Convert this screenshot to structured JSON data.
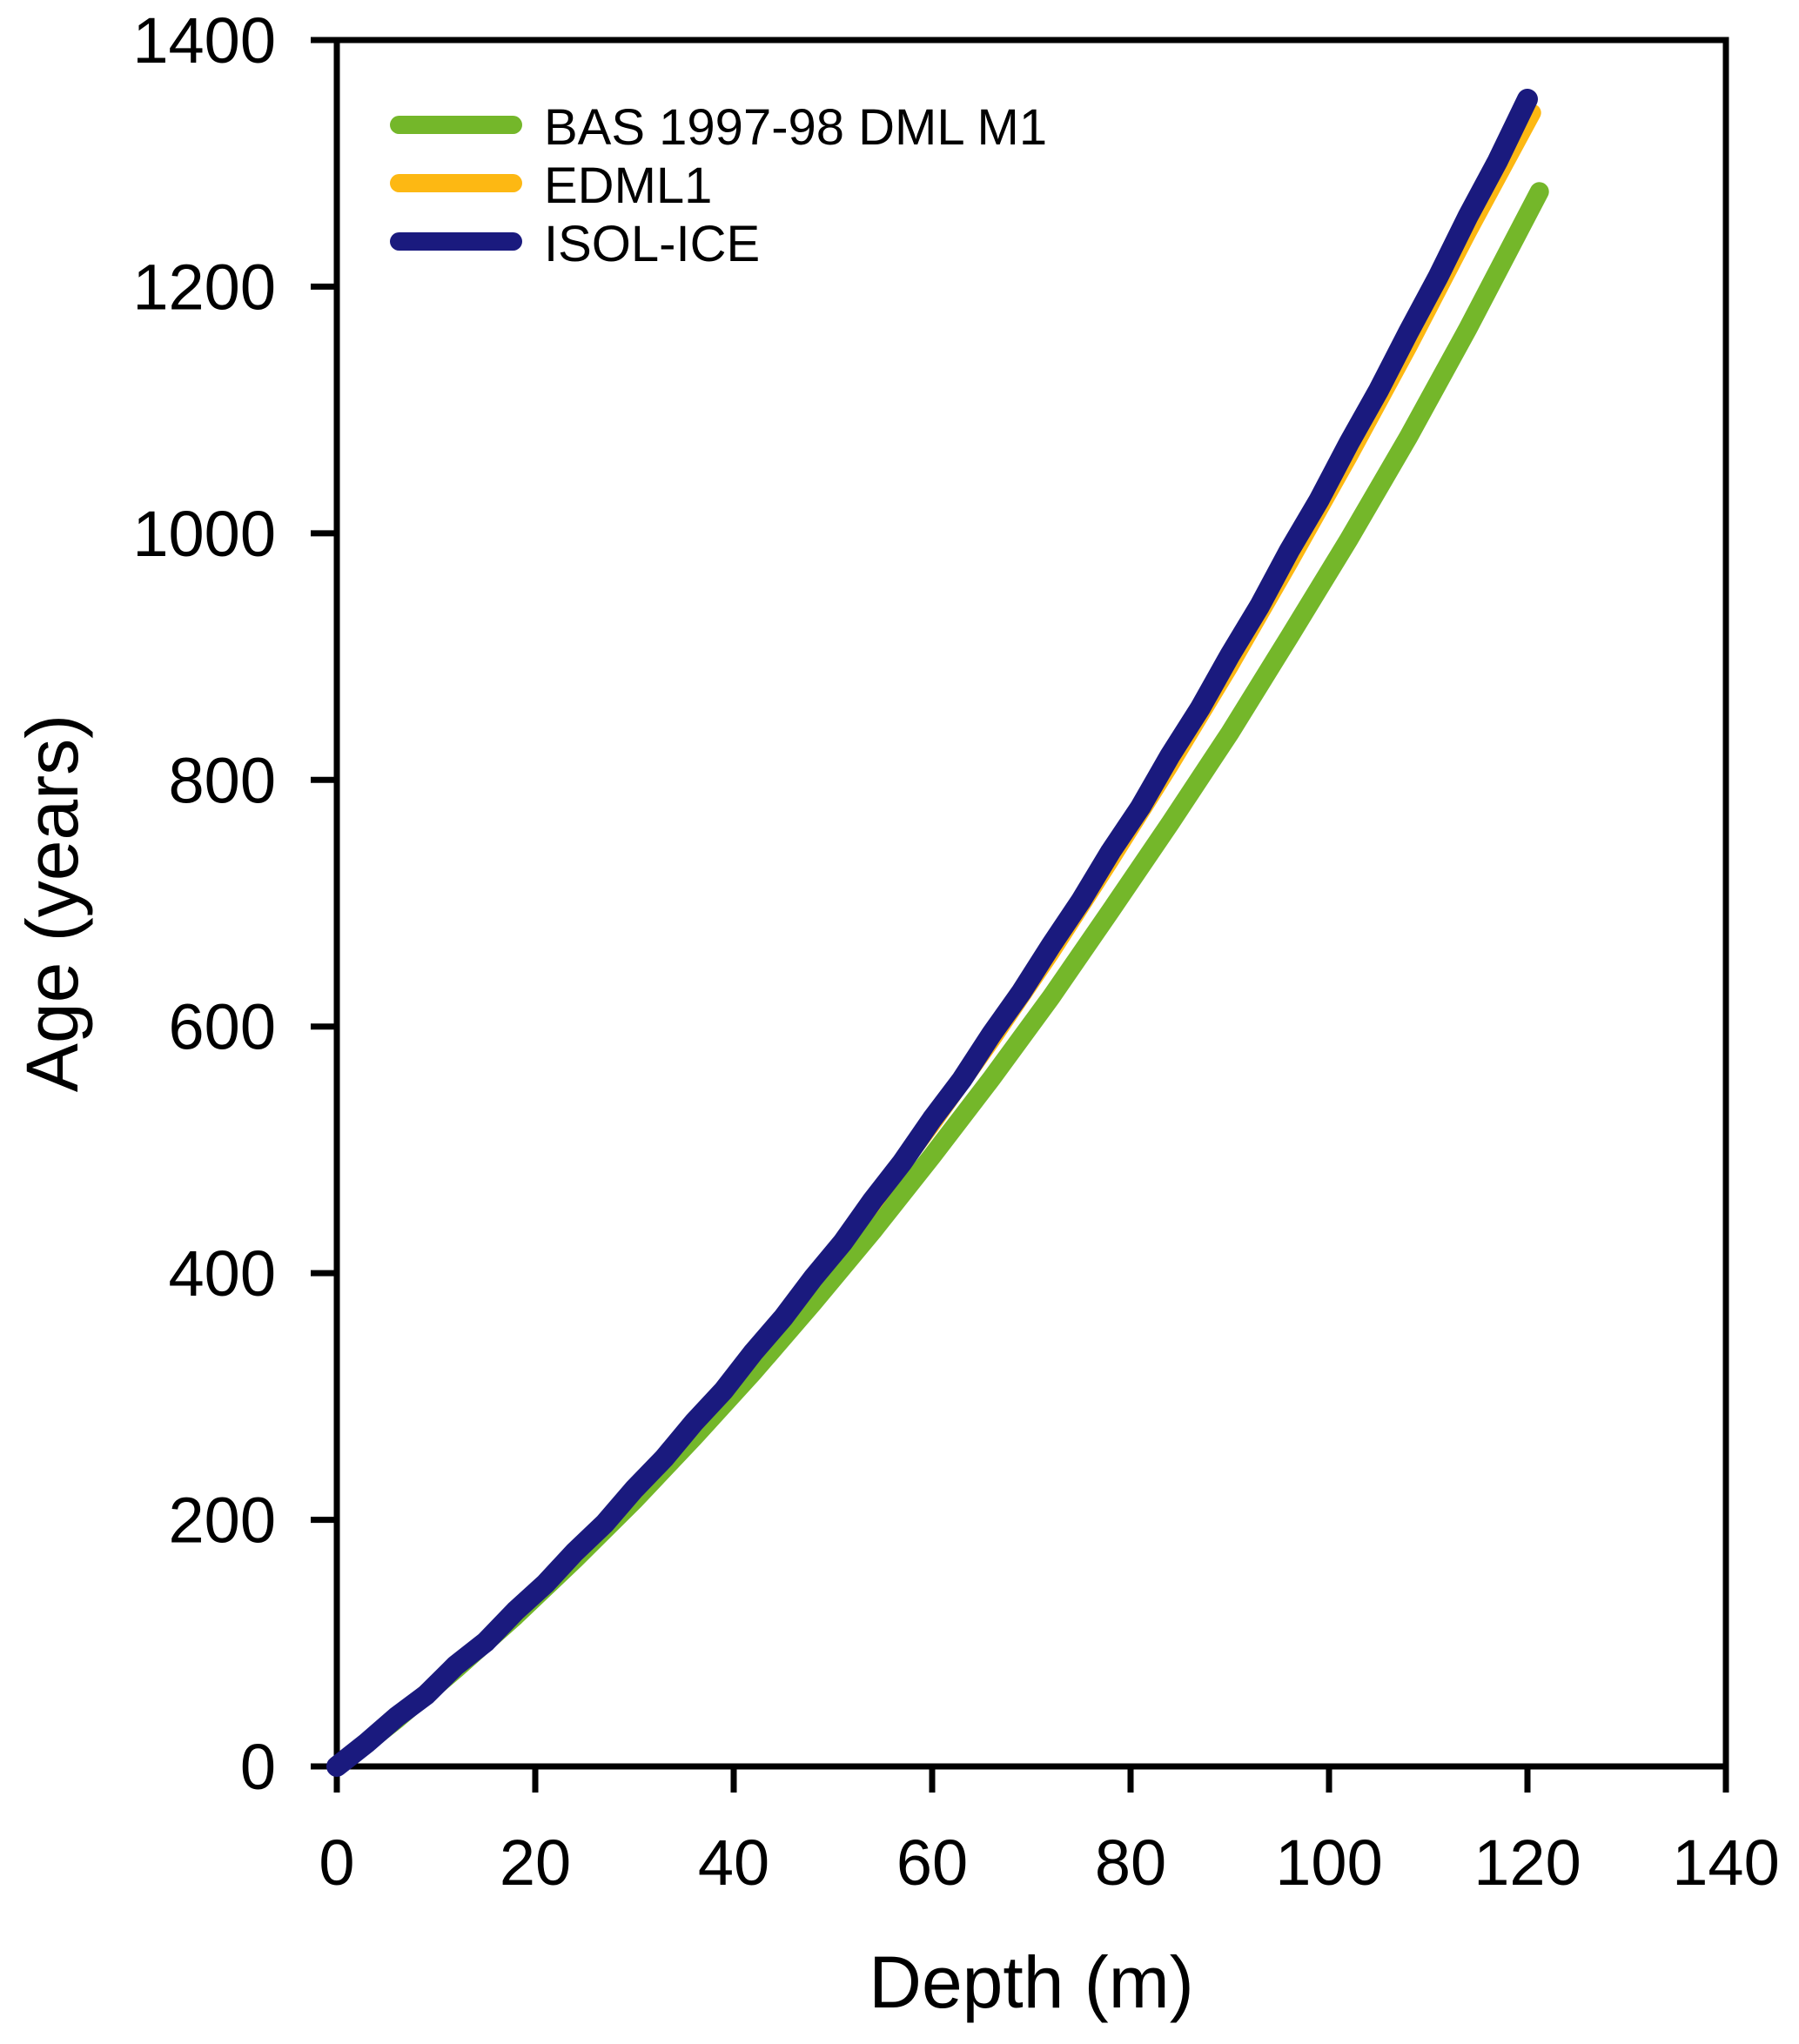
{
  "chart_data": {
    "type": "line",
    "title": "",
    "xlabel": "Depth (m)",
    "ylabel": "Age (years)",
    "xlim": [
      0,
      140
    ],
    "ylim": [
      0,
      1400
    ],
    "x_ticks": [
      0,
      20,
      40,
      60,
      80,
      100,
      120,
      140
    ],
    "y_ticks": [
      0,
      200,
      400,
      600,
      800,
      1000,
      1200,
      1400
    ],
    "grid": "off",
    "frame": "box",
    "legend_position": "top-left",
    "axis_color": "#000000",
    "series": [
      {
        "name": "BAS 1997-98 DML M1",
        "color": "#74B72A",
        "line_width": 22,
        "points": [
          [
            0,
            0
          ],
          [
            6,
            38
          ],
          [
            12,
            79
          ],
          [
            18,
            122
          ],
          [
            24,
            168
          ],
          [
            30,
            216
          ],
          [
            36,
            267
          ],
          [
            42,
            320
          ],
          [
            48,
            376
          ],
          [
            54,
            434
          ],
          [
            60,
            495
          ],
          [
            66,
            558
          ],
          [
            72,
            624
          ],
          [
            78,
            694
          ],
          [
            84,
            765
          ],
          [
            90,
            838
          ],
          [
            96,
            916
          ],
          [
            102,
            995
          ],
          [
            108,
            1078
          ],
          [
            114,
            1166
          ],
          [
            121.2,
            1277
          ]
        ]
      },
      {
        "name": "EDML1",
        "color": "#FDB813",
        "line_width": 20,
        "points": [
          [
            0,
            0
          ],
          [
            6,
            39
          ],
          [
            12,
            81
          ],
          [
            18,
            124
          ],
          [
            24,
            172
          ],
          [
            30,
            223
          ],
          [
            36,
            277
          ],
          [
            42,
            334
          ],
          [
            48,
            394
          ],
          [
            54,
            456
          ],
          [
            60,
            521
          ],
          [
            66,
            589
          ],
          [
            72,
            660
          ],
          [
            78,
            735
          ],
          [
            84,
            812
          ],
          [
            90,
            892
          ],
          [
            96,
            976
          ],
          [
            102,
            1062
          ],
          [
            108,
            1151
          ],
          [
            114,
            1244
          ],
          [
            120.5,
            1341
          ]
        ]
      },
      {
        "name": "ISOL-ICE",
        "color": "#1A1A7E",
        "line_width": 24,
        "points": [
          [
            0,
            0
          ],
          [
            3,
            19
          ],
          [
            6,
            40
          ],
          [
            9,
            58
          ],
          [
            12,
            82
          ],
          [
            15,
            101
          ],
          [
            18,
            126
          ],
          [
            21,
            148
          ],
          [
            24,
            174
          ],
          [
            27,
            197
          ],
          [
            30,
            225
          ],
          [
            33,
            250
          ],
          [
            36,
            279
          ],
          [
            39,
            305
          ],
          [
            42,
            336
          ],
          [
            45,
            364
          ],
          [
            48,
            396
          ],
          [
            51,
            425
          ],
          [
            54,
            459
          ],
          [
            57,
            490
          ],
          [
            60,
            525
          ],
          [
            63,
            557
          ],
          [
            66,
            594
          ],
          [
            69,
            628
          ],
          [
            72,
            666
          ],
          [
            75,
            702
          ],
          [
            78,
            742
          ],
          [
            81,
            778
          ],
          [
            84,
            820
          ],
          [
            87,
            858
          ],
          [
            90,
            901
          ],
          [
            93,
            941
          ],
          [
            96,
            986
          ],
          [
            99,
            1027
          ],
          [
            102,
            1073
          ],
          [
            105,
            1116
          ],
          [
            108,
            1163
          ],
          [
            111,
            1208
          ],
          [
            114,
            1257
          ],
          [
            117,
            1302
          ],
          [
            120,
            1352
          ]
        ]
      }
    ]
  }
}
